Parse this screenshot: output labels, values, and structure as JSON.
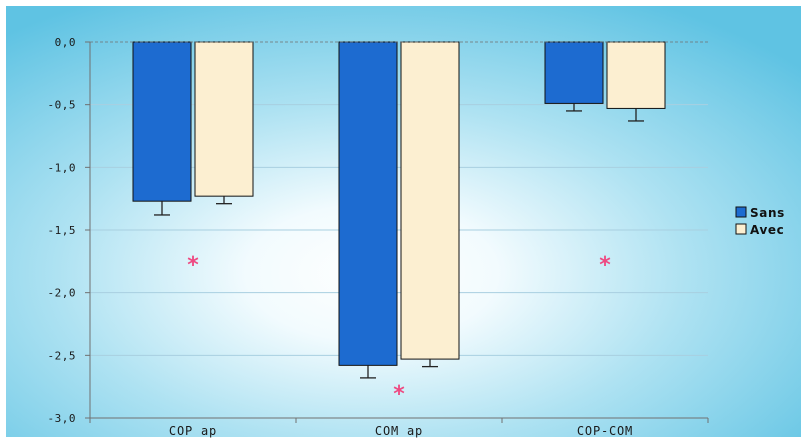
{
  "chart_data": {
    "type": "bar",
    "categories": [
      "COP ap",
      "COM ap",
      "COP-COM"
    ],
    "series": [
      {
        "name": "Sans",
        "values": [
          -1.27,
          -2.58,
          -0.49
        ],
        "errors": [
          0.11,
          0.1,
          0.06
        ]
      },
      {
        "name": "Avec",
        "values": [
          -1.23,
          -2.53,
          -0.53
        ],
        "errors": [
          0.06,
          0.06,
          0.1
        ]
      }
    ],
    "ylim": [
      -3.0,
      0.0
    ],
    "yticks": [
      0.0,
      -0.5,
      -1.0,
      -1.5,
      -2.0,
      -2.5,
      -3.0
    ],
    "ytick_labels": [
      "0,0",
      "-0,5",
      "-1,0",
      "-1,5",
      "-2,0",
      "-2,5",
      "-3,0"
    ],
    "significance_markers": [
      {
        "category": "COP ap",
        "label": "*",
        "value": -1.77
      },
      {
        "category": "COM ap",
        "label": "*",
        "value": -2.8
      },
      {
        "category": "COP-COM",
        "label": "*",
        "value": -1.77
      }
    ],
    "title": "",
    "xlabel": "",
    "ylabel": "",
    "grid": true,
    "legend_position": "right"
  },
  "colors": {
    "background_outer": "#5fc3e3",
    "background_center": "#ffffff",
    "sans": "#1d6bd0",
    "avec": "#fcefd1",
    "gridline": "#a8cfe0",
    "axis": "#707070",
    "marker": "#ee4a82"
  }
}
